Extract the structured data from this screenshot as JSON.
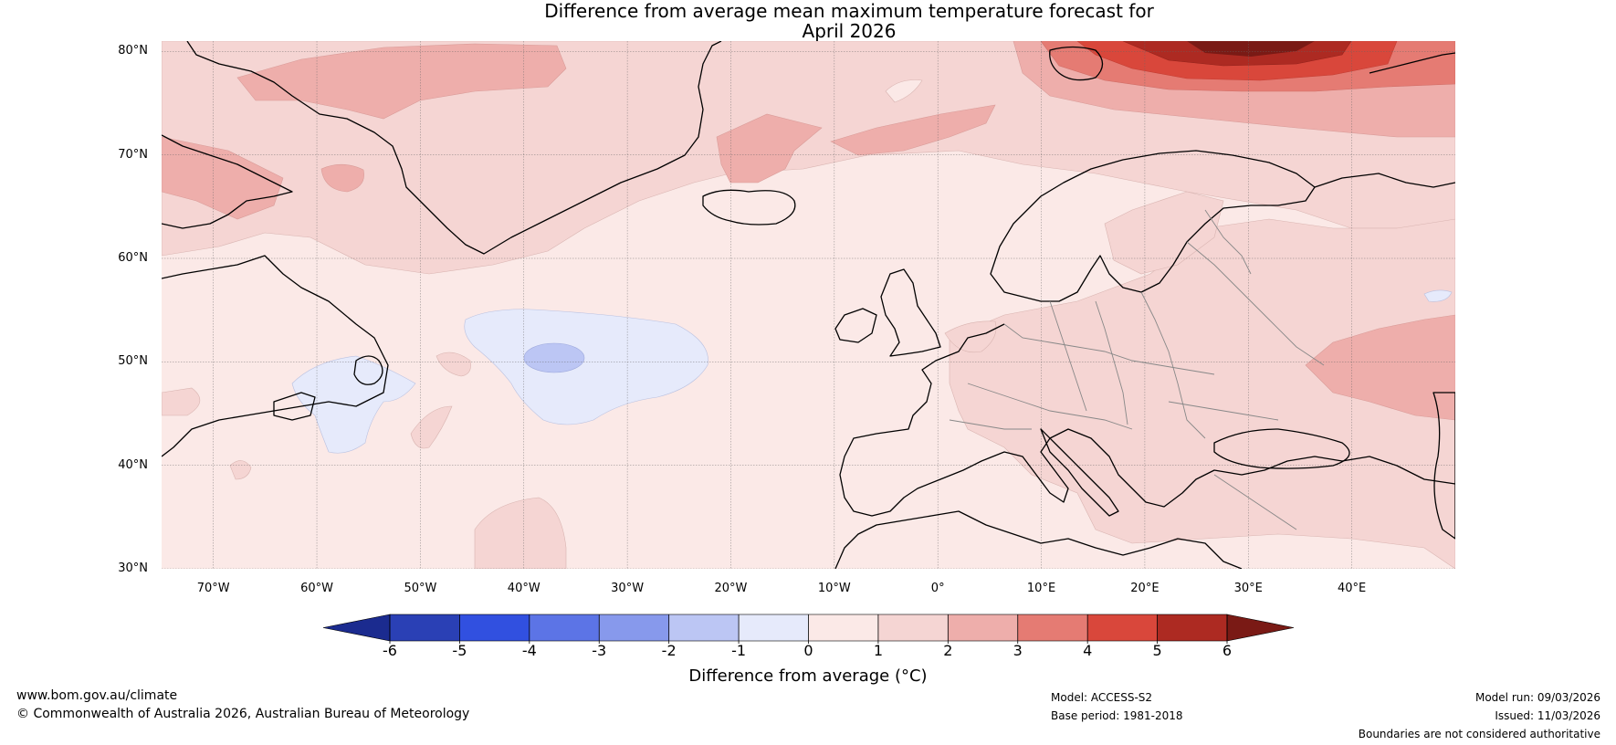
{
  "title_line1": "Difference from average mean maximum temperature forecast for",
  "title_line2": "April 2026",
  "map": {
    "lat_labels": [
      "80°N",
      "70°N",
      "60°N",
      "50°N",
      "40°N",
      "30°N"
    ],
    "lon_labels": [
      "70°W",
      "60°W",
      "50°W",
      "40°W",
      "30°W",
      "20°W",
      "10°W",
      "0°",
      "10°E",
      "20°E",
      "30°E",
      "40°E"
    ],
    "lat_values": [
      80,
      70,
      60,
      50,
      40,
      30
    ],
    "lon_values": [
      -70,
      -60,
      -50,
      -40,
      -30,
      -20,
      -10,
      0,
      10,
      20,
      30,
      40
    ],
    "extent": {
      "lon_min": -75,
      "lon_max": 50,
      "lat_min": 30,
      "lat_max": 81
    },
    "regions": [
      {
        "name": "north-atlantic-background",
        "class": "0 to 1"
      },
      {
        "name": "greenland-sea-warm-band",
        "class": "1 to 2"
      },
      {
        "name": "barents-sea-anomaly",
        "class": "5 to 6"
      },
      {
        "name": "labrador-sea-warm",
        "class": "2 to 3"
      },
      {
        "name": "mid-atlantic-cool",
        "class": "-1 to 0"
      },
      {
        "name": "mid-atlantic-cool-core",
        "class": "-2 to -1"
      },
      {
        "name": "newfoundland-cool",
        "class": "-1 to 0"
      },
      {
        "name": "eastern-europe-warm",
        "class": "1 to 2"
      },
      {
        "name": "black-sea-caspian-warm",
        "class": "2 to 3"
      }
    ]
  },
  "colorbar": {
    "title": "Difference from average (°C)",
    "ticks": [
      "-6",
      "-5",
      "-4",
      "-3",
      "-2",
      "-1",
      "0",
      "1",
      "2",
      "3",
      "4",
      "5",
      "6"
    ],
    "colors": {
      "below": "#1b2b8f",
      "bins": [
        "#2a40b5",
        "#3150e0",
        "#5c74e6",
        "#8799ec",
        "#bcc6f4",
        "#e6eafb",
        "#fbe9e7",
        "#f5d5d3",
        "#eeaeab",
        "#e57b73",
        "#d9473b",
        "#ad2a22"
      ],
      "above": "#7a1a15"
    }
  },
  "footer": {
    "website": "www.bom.gov.au/climate",
    "copyright": "© Commonwealth of Australia 2026, Australian Bureau of Meteorology",
    "model": "Model: ACCESS-S2",
    "base_period": "Base period: 1981-2018",
    "model_run": "Model run: 09/03/2026",
    "issued": "Issued: 11/03/2026",
    "disclaimer": "Boundaries are not considered authoritative"
  }
}
